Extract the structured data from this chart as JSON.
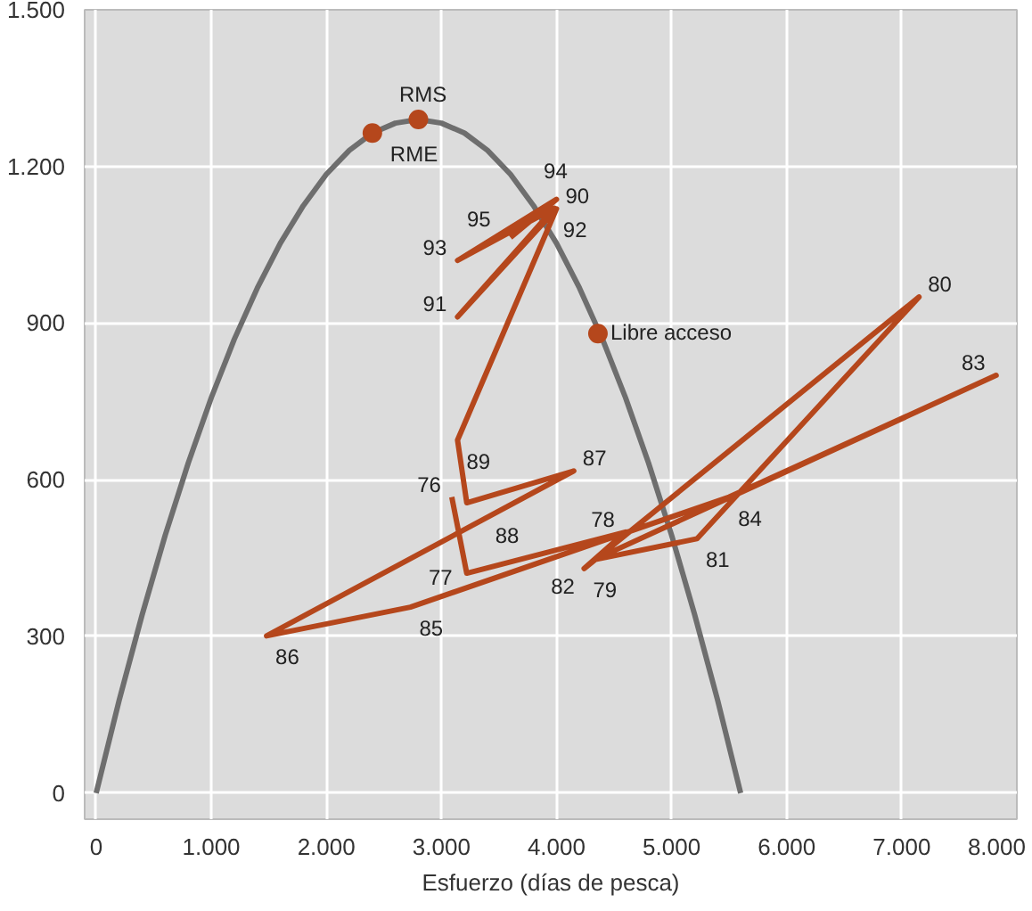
{
  "chart_data": {
    "type": "line",
    "xlabel": "Esfuerzo (días de pesca)",
    "xlim": [
      -100,
      8000
    ],
    "ylim": [
      -50,
      1500
    ],
    "xticks": [
      0,
      {
        "value": 1000,
        "label": "1.000"
      },
      {
        "value": 2000,
        "label": "2.000"
      },
      {
        "value": 3000,
        "label": "3.000"
      },
      {
        "value": 4000,
        "label": "4.000"
      },
      {
        "value": 5000,
        "label": "5.000"
      },
      {
        "value": 6000,
        "label": "6.000"
      },
      {
        "value": 7000,
        "label": "7.000"
      },
      {
        "value": 8000,
        "label": "8.000"
      }
    ],
    "yticks": [
      0,
      300,
      600,
      900,
      {
        "value": 1200,
        "label": "1.200"
      },
      {
        "value": 1500,
        "label": "1.500"
      }
    ],
    "grid": true,
    "marker": "none",
    "line_style": "solid",
    "series": [
      {
        "color": "#6e6e6e",
        "x": [
          0,
          200,
          400,
          600,
          800,
          1000,
          1200,
          1400,
          1600,
          1800,
          2000,
          2200,
          2400,
          2600,
          2800,
          3000,
          3200,
          3400,
          3600,
          3800,
          4000,
          4200,
          4400,
          4600,
          4800,
          5000,
          5200,
          5400,
          5600
        ],
        "values": [
          0,
          178,
          342,
          494,
          632,
          757,
          869,
          967,
          1053,
          1125,
          1185,
          1231,
          1264,
          1283,
          1290,
          1283,
          1264,
          1231,
          1185,
          1125,
          1053,
          967,
          869,
          757,
          632,
          494,
          342,
          178,
          0
        ]
      },
      {
        "color": "#b5471c",
        "x": [
          3090,
          3220,
          4600,
          4240,
          7150,
          5220,
          4330,
          7820,
          5500,
          2730,
          1480,
          4150,
          3220,
          3140,
          4000,
          3140,
          3980,
          3140,
          4000,
          3600
        ],
        "values": [
          567,
          421,
          500,
          430,
          950,
          487,
          447,
          800,
          567,
          356,
          301,
          617,
          556,
          676,
          1119,
          912,
          1120,
          1020,
          1137,
          1064
        ]
      },
      {
        "type": "scatter",
        "marker": "circle",
        "color": "#b5471c",
        "x": [
          2400,
          2800,
          4360
        ],
        "values": [
          1264,
          1290,
          880
        ]
      }
    ],
    "annotations": [
      {
        "text": "RME",
        "x": 2400,
        "y": 1264
      },
      {
        "text": "RMS",
        "x": 2800,
        "y": 1290
      },
      {
        "text": "Libre acceso",
        "x": 4360,
        "y": 880
      },
      {
        "text": "76",
        "x": 3090,
        "y": 567
      },
      {
        "text": "77",
        "x": 3220,
        "y": 421
      },
      {
        "text": "78",
        "x": 4600,
        "y": 500
      },
      {
        "text": "79",
        "x": 4240,
        "y": 430
      },
      {
        "text": "80",
        "x": 7150,
        "y": 950
      },
      {
        "text": "81",
        "x": 5220,
        "y": 487
      },
      {
        "text": "82",
        "x": 4330,
        "y": 447
      },
      {
        "text": "83",
        "x": 7820,
        "y": 800
      },
      {
        "text": "84",
        "x": 5500,
        "y": 567
      },
      {
        "text": "85",
        "x": 2730,
        "y": 356
      },
      {
        "text": "86",
        "x": 1480,
        "y": 301
      },
      {
        "text": "87",
        "x": 4150,
        "y": 617
      },
      {
        "text": "88",
        "x": 3220,
        "y": 556
      },
      {
        "text": "89",
        "x": 3140,
        "y": 676
      },
      {
        "text": "90",
        "x": 4000,
        "y": 1119
      },
      {
        "text": "91",
        "x": 3140,
        "y": 912
      },
      {
        "text": "92",
        "x": 3980,
        "y": 1120
      },
      {
        "text": "93",
        "x": 3140,
        "y": 1020
      },
      {
        "text": "94",
        "x": 4000,
        "y": 1137
      },
      {
        "text": "95",
        "x": 3600,
        "y": 1064
      }
    ]
  }
}
